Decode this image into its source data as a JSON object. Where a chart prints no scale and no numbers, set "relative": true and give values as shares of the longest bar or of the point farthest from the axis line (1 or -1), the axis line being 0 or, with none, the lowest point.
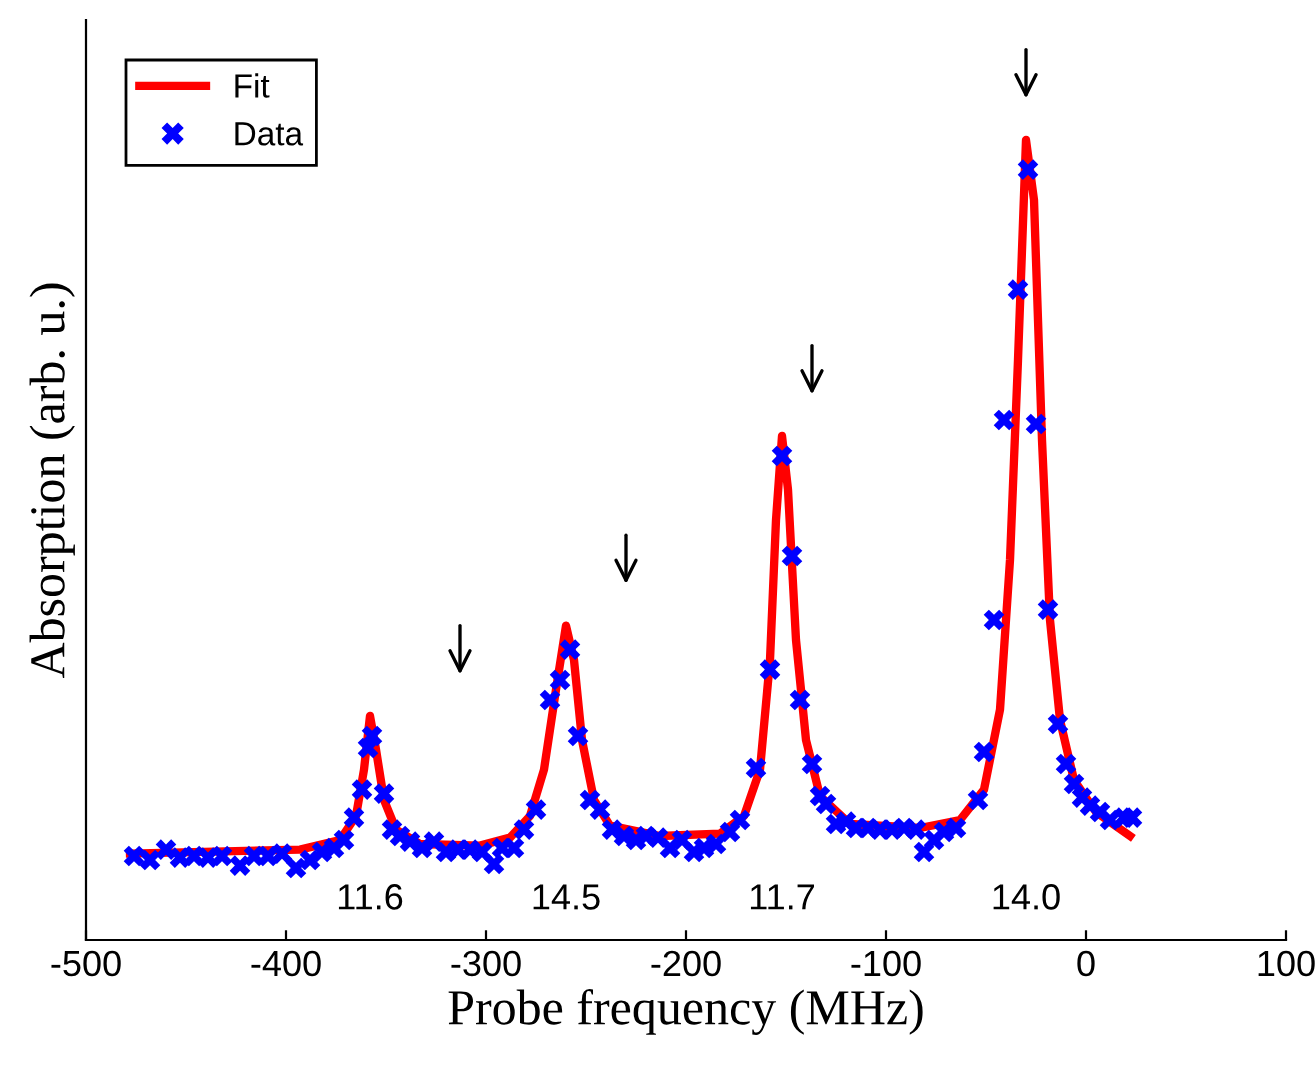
{
  "chart_data": {
    "type": "line",
    "xlabel": "Probe frequency (MHz)",
    "ylabel": "Absorption (arb. u.)",
    "relative": true,
    "xlim": [
      -500,
      100
    ],
    "xticks": [
      -500,
      -400,
      -300,
      -200,
      -100,
      0,
      100
    ],
    "grid": false,
    "legend": "top left",
    "series": [
      {
        "name": "Fit",
        "color": "#ff0000",
        "line_style": "solid",
        "marker": "none",
        "x": [
          -478,
          -393,
          -373,
          -365,
          -361,
          -358,
          -355,
          -351,
          -345,
          -333,
          -303,
          -288,
          -278,
          -271,
          -265,
          -260,
          -256,
          -252,
          -246,
          -238,
          -213,
          -183,
          -171,
          -163,
          -158,
          -155,
          -152,
          -149,
          -145,
          -140,
          -133,
          -118,
          -83,
          -63,
          -51,
          -43,
          -38,
          -34,
          -30,
          -26,
          -22,
          -18,
          -13,
          -6,
          5,
          22
        ],
        "values": [
          0.108,
          0.113,
          0.125,
          0.155,
          0.213,
          0.28,
          0.238,
          0.175,
          0.138,
          0.12,
          0.118,
          0.128,
          0.155,
          0.213,
          0.313,
          0.393,
          0.35,
          0.25,
          0.175,
          0.143,
          0.13,
          0.133,
          0.155,
          0.213,
          0.35,
          0.525,
          0.63,
          0.563,
          0.375,
          0.25,
          0.18,
          0.145,
          0.14,
          0.15,
          0.188,
          0.288,
          0.475,
          0.725,
          1.0,
          0.925,
          0.625,
          0.4,
          0.275,
          0.2,
          0.16,
          0.13
        ]
      },
      {
        "name": "Data",
        "type": "scatter",
        "color": "#0000ff",
        "marker": "cross",
        "x": [
          -476,
          -468,
          -460,
          -453,
          -446,
          -439,
          -432,
          -423,
          -416,
          -409,
          -402,
          -395,
          -388,
          -382,
          -376,
          -371,
          -366,
          -362,
          -359,
          -357,
          -351,
          -347,
          -343,
          -338,
          -332,
          -326,
          -320,
          -314,
          -308,
          -302,
          -296,
          -292,
          -286,
          -281,
          -275,
          -268,
          -263,
          -258,
          -254,
          -248,
          -243,
          -237,
          -231,
          -225,
          -220,
          -214,
          -208,
          -202,
          -196,
          -191,
          -185,
          -178,
          -173,
          -165,
          -158,
          -152,
          -147,
          -143,
          -137,
          -133,
          -130,
          -125,
          -120,
          -115,
          -109,
          -103,
          -97,
          -91,
          -85,
          -81,
          -76,
          -71,
          -65,
          -54,
          -51,
          -46,
          -41,
          -34,
          -29,
          -25,
          -19,
          -14,
          -10,
          -6,
          -2,
          2,
          7,
          12,
          19,
          23
        ],
        "values": [
          0.105,
          0.1,
          0.113,
          0.103,
          0.105,
          0.103,
          0.105,
          0.093,
          0.105,
          0.105,
          0.108,
          0.09,
          0.1,
          0.11,
          0.115,
          0.125,
          0.153,
          0.188,
          0.24,
          0.255,
          0.183,
          0.138,
          0.13,
          0.123,
          0.115,
          0.123,
          0.11,
          0.113,
          0.113,
          0.11,
          0.095,
          0.115,
          0.115,
          0.138,
          0.163,
          0.3,
          0.325,
          0.363,
          0.255,
          0.175,
          0.163,
          0.138,
          0.13,
          0.125,
          0.13,
          0.128,
          0.115,
          0.125,
          0.11,
          0.115,
          0.12,
          0.135,
          0.15,
          0.215,
          0.338,
          0.605,
          0.48,
          0.3,
          0.22,
          0.18,
          0.17,
          0.145,
          0.148,
          0.14,
          0.14,
          0.138,
          0.138,
          0.14,
          0.138,
          0.11,
          0.125,
          0.135,
          0.14,
          0.175,
          0.235,
          0.4,
          0.65,
          0.813,
          0.963,
          0.645,
          0.413,
          0.27,
          0.22,
          0.195,
          0.178,
          0.168,
          0.16,
          0.15,
          0.153,
          0.153
        ]
      }
    ],
    "annotations": [
      "11.6",
      "14.5",
      "11.7",
      "14.0"
    ]
  }
}
